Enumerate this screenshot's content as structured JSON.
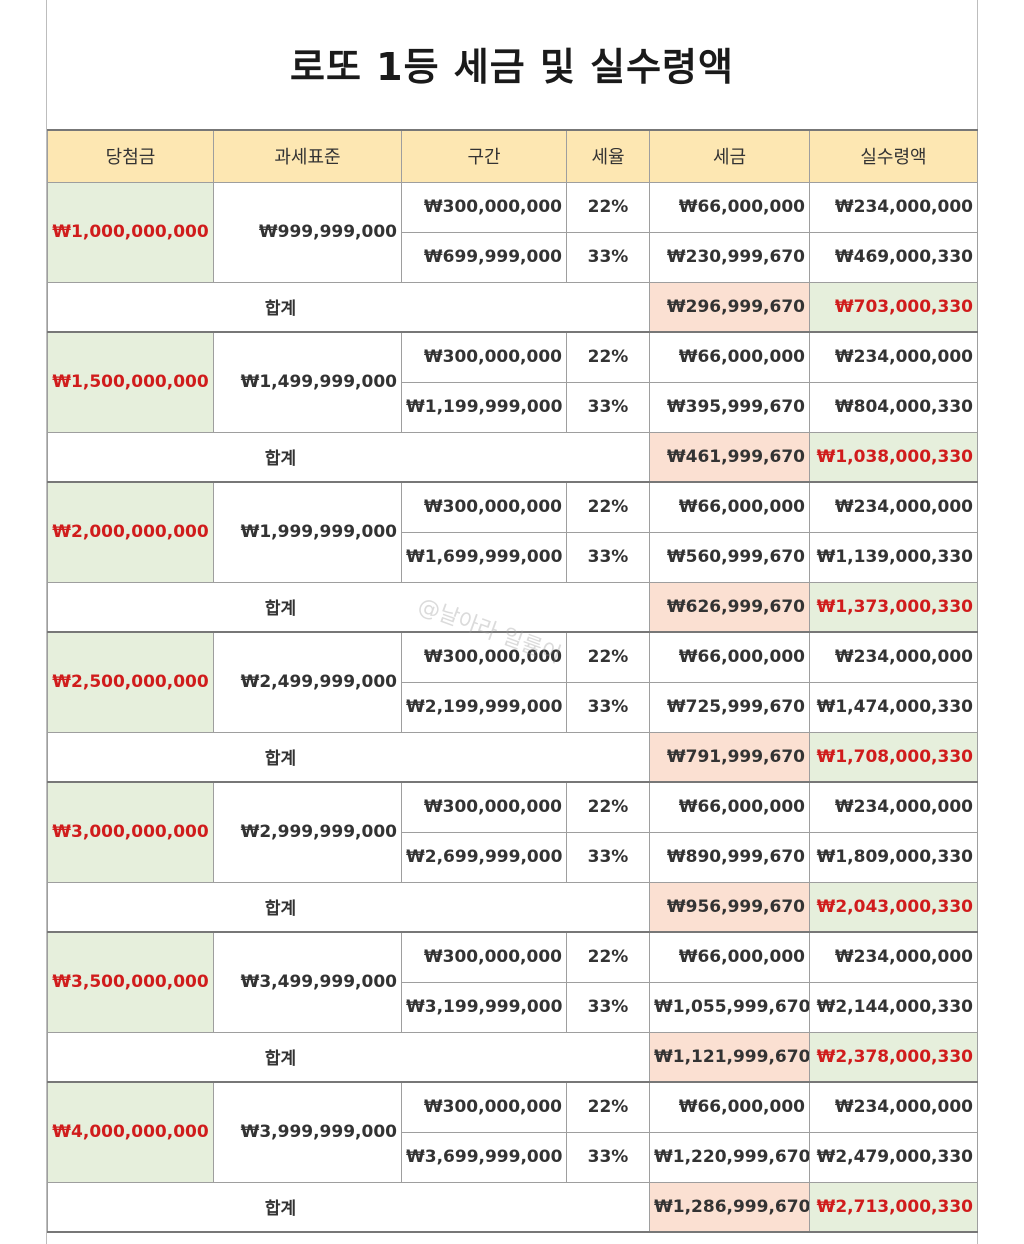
{
  "title": "로또 1등 세금 및 실수령액",
  "headers": [
    "당첨금",
    "과세표준",
    "구간",
    "세율",
    "세금",
    "실수령액"
  ],
  "total_label": "합계",
  "watermark": "@날아라 일률이",
  "colors": {
    "header_bg": "#fde7b2",
    "prize_bg": "#e6efdc",
    "tax_total_bg": "#fbe0d2",
    "highlight_red": "#d01c1c"
  },
  "groups": [
    {
      "prize": "₩1,000,000,000",
      "base": "₩999,999,000",
      "rows": [
        {
          "section": "₩300,000,000",
          "rate": "22%",
          "tax": "₩66,000,000",
          "net": "₩234,000,000"
        },
        {
          "section": "₩699,999,000",
          "rate": "33%",
          "tax": "₩230,999,670",
          "net": "₩469,000,330"
        }
      ],
      "total_tax": "₩296,999,670",
      "total_net": "₩703,000,330"
    },
    {
      "prize": "₩1,500,000,000",
      "base": "₩1,499,999,000",
      "rows": [
        {
          "section": "₩300,000,000",
          "rate": "22%",
          "tax": "₩66,000,000",
          "net": "₩234,000,000"
        },
        {
          "section": "₩1,199,999,000",
          "rate": "33%",
          "tax": "₩395,999,670",
          "net": "₩804,000,330"
        }
      ],
      "total_tax": "₩461,999,670",
      "total_net": "₩1,038,000,330"
    },
    {
      "prize": "₩2,000,000,000",
      "base": "₩1,999,999,000",
      "rows": [
        {
          "section": "₩300,000,000",
          "rate": "22%",
          "tax": "₩66,000,000",
          "net": "₩234,000,000"
        },
        {
          "section": "₩1,699,999,000",
          "rate": "33%",
          "tax": "₩560,999,670",
          "net": "₩1,139,000,330"
        }
      ],
      "total_tax": "₩626,999,670",
      "total_net": "₩1,373,000,330"
    },
    {
      "prize": "₩2,500,000,000",
      "base": "₩2,499,999,000",
      "rows": [
        {
          "section": "₩300,000,000",
          "rate": "22%",
          "tax": "₩66,000,000",
          "net": "₩234,000,000"
        },
        {
          "section": "₩2,199,999,000",
          "rate": "33%",
          "tax": "₩725,999,670",
          "net": "₩1,474,000,330"
        }
      ],
      "total_tax": "₩791,999,670",
      "total_net": "₩1,708,000,330"
    },
    {
      "prize": "₩3,000,000,000",
      "base": "₩2,999,999,000",
      "rows": [
        {
          "section": "₩300,000,000",
          "rate": "22%",
          "tax": "₩66,000,000",
          "net": "₩234,000,000"
        },
        {
          "section": "₩2,699,999,000",
          "rate": "33%",
          "tax": "₩890,999,670",
          "net": "₩1,809,000,330"
        }
      ],
      "total_tax": "₩956,999,670",
      "total_net": "₩2,043,000,330"
    },
    {
      "prize": "₩3,500,000,000",
      "base": "₩3,499,999,000",
      "rows": [
        {
          "section": "₩300,000,000",
          "rate": "22%",
          "tax": "₩66,000,000",
          "net": "₩234,000,000"
        },
        {
          "section": "₩3,199,999,000",
          "rate": "33%",
          "tax": "₩1,055,999,670",
          "net": "₩2,144,000,330"
        }
      ],
      "total_tax": "₩1,121,999,670",
      "total_net": "₩2,378,000,330"
    },
    {
      "prize": "₩4,000,000,000",
      "base": "₩3,999,999,000",
      "rows": [
        {
          "section": "₩300,000,000",
          "rate": "22%",
          "tax": "₩66,000,000",
          "net": "₩234,000,000"
        },
        {
          "section": "₩3,699,999,000",
          "rate": "33%",
          "tax": "₩1,220,999,670",
          "net": "₩2,479,000,330"
        }
      ],
      "total_tax": "₩1,286,999,670",
      "total_net": "₩2,713,000,330"
    }
  ]
}
